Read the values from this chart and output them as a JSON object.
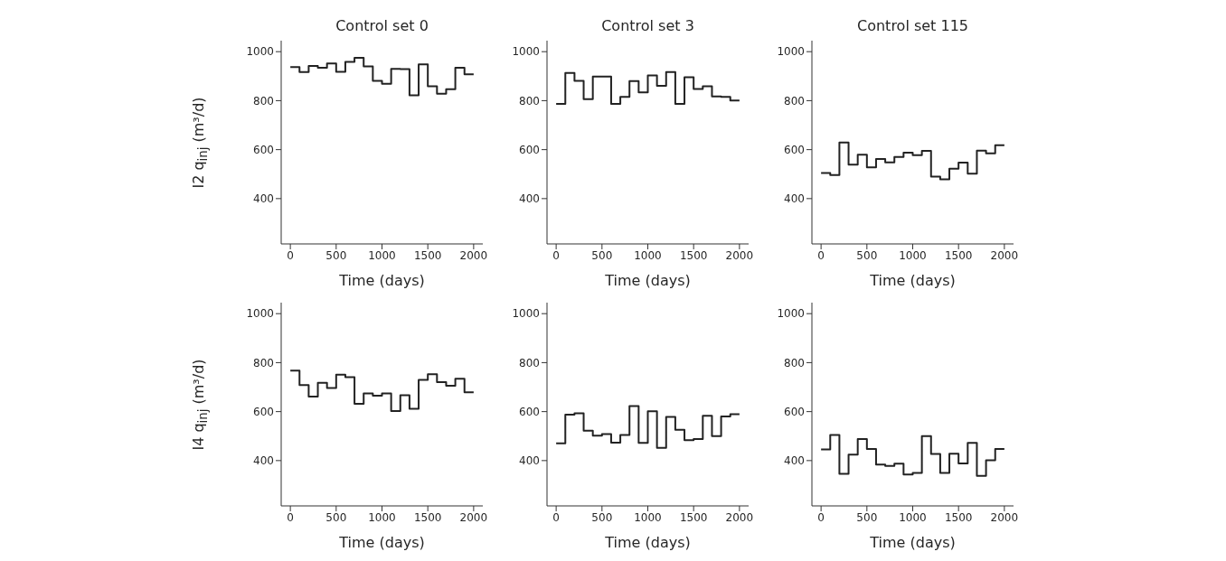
{
  "chart_data": [
    {
      "type": "step",
      "title": "Control set 0",
      "xlabel": "Time (days)",
      "ylabel": "I2 q$_{inj}$ (m³/d)",
      "x": [
        0,
        100,
        200,
        300,
        400,
        500,
        600,
        700,
        800,
        900,
        1000,
        1100,
        1200,
        1300,
        1400,
        1500,
        1600,
        1700,
        1800,
        1900,
        2000
      ],
      "color": "#222222",
      "values": [
        937,
        917,
        942,
        934,
        952,
        918,
        958,
        975,
        940,
        881,
        869,
        930,
        929,
        822,
        948,
        859,
        828,
        847,
        934,
        908,
        908
      ],
      "xlim": [
        -100,
        2100
      ],
      "ylim": [
        215,
        1045
      ],
      "xticks": [
        0,
        500,
        1000,
        1500,
        2000
      ],
      "yticks": [
        400,
        600,
        800,
        1000
      ]
    },
    {
      "type": "step",
      "title": "Control set 3",
      "xlabel": "Time (days)",
      "x": [
        0,
        100,
        200,
        300,
        400,
        500,
        600,
        700,
        800,
        900,
        1000,
        1100,
        1200,
        1300,
        1400,
        1500,
        1600,
        1700,
        1800,
        1900,
        2000
      ],
      "color": "#222222",
      "values": [
        787,
        913,
        881,
        806,
        898,
        898,
        787,
        815,
        880,
        834,
        903,
        861,
        917,
        787,
        896,
        848,
        859,
        817,
        815,
        801,
        801
      ],
      "xlim": [
        -100,
        2100
      ],
      "ylim": [
        215,
        1045
      ],
      "xticks": [
        0,
        500,
        1000,
        1500,
        2000
      ],
      "yticks": [
        400,
        600,
        800,
        1000
      ]
    },
    {
      "type": "step",
      "title": "Control set 115",
      "xlabel": "Time (days)",
      "x": [
        0,
        100,
        200,
        300,
        400,
        500,
        600,
        700,
        800,
        900,
        1000,
        1100,
        1200,
        1300,
        1400,
        1500,
        1600,
        1700,
        1800,
        1900,
        2000
      ],
      "color": "#222222",
      "values": [
        505,
        496,
        629,
        539,
        579,
        528,
        562,
        548,
        570,
        588,
        577,
        595,
        490,
        479,
        522,
        547,
        502,
        596,
        585,
        618,
        618
      ],
      "xlim": [
        -100,
        2100
      ],
      "ylim": [
        215,
        1045
      ],
      "xticks": [
        0,
        500,
        1000,
        1500,
        2000
      ],
      "yticks": [
        400,
        600,
        800,
        1000
      ]
    },
    {
      "type": "step",
      "xlabel": "Time (days)",
      "ylabel": "I4 q$_{inj}$ (m³/d)",
      "x": [
        0,
        100,
        200,
        300,
        400,
        500,
        600,
        700,
        800,
        900,
        1000,
        1100,
        1200,
        1300,
        1400,
        1500,
        1600,
        1700,
        1800,
        1900,
        2000
      ],
      "color": "#222222",
      "values": [
        767,
        708,
        661,
        718,
        696,
        751,
        741,
        632,
        674,
        665,
        674,
        602,
        667,
        612,
        730,
        753,
        720,
        706,
        734,
        679,
        679
      ],
      "xlim": [
        -100,
        2100
      ],
      "ylim": [
        215,
        1045
      ],
      "xticks": [
        0,
        500,
        1000,
        1500,
        2000
      ],
      "yticks": [
        400,
        600,
        800,
        1000
      ]
    },
    {
      "type": "step",
      "xlabel": "Time (days)",
      "x": [
        0,
        100,
        200,
        300,
        400,
        500,
        600,
        700,
        800,
        900,
        1000,
        1100,
        1200,
        1300,
        1400,
        1500,
        1600,
        1700,
        1800,
        1900,
        2000
      ],
      "color": "#222222",
      "values": [
        470,
        588,
        593,
        522,
        502,
        508,
        473,
        505,
        623,
        472,
        601,
        452,
        578,
        526,
        483,
        488,
        583,
        500,
        580,
        589,
        589
      ],
      "xlim": [
        -100,
        2100
      ],
      "ylim": [
        215,
        1045
      ],
      "xticks": [
        0,
        500,
        1000,
        1500,
        2000
      ],
      "yticks": [
        400,
        600,
        800,
        1000
      ]
    },
    {
      "type": "step",
      "xlabel": "Time (days)",
      "x": [
        0,
        100,
        200,
        300,
        400,
        500,
        600,
        700,
        800,
        900,
        1000,
        1100,
        1200,
        1300,
        1400,
        1500,
        1600,
        1700,
        1800,
        1900,
        2000
      ],
      "color": "#222222",
      "values": [
        446,
        505,
        346,
        424,
        488,
        447,
        384,
        378,
        387,
        343,
        350,
        500,
        427,
        350,
        428,
        388,
        472,
        338,
        401,
        447,
        447
      ],
      "xlim": [
        -100,
        2100
      ],
      "ylim": [
        215,
        1045
      ],
      "xticks": [
        0,
        500,
        1000,
        1500,
        2000
      ],
      "yticks": [
        400,
        600,
        800,
        1000
      ]
    }
  ]
}
